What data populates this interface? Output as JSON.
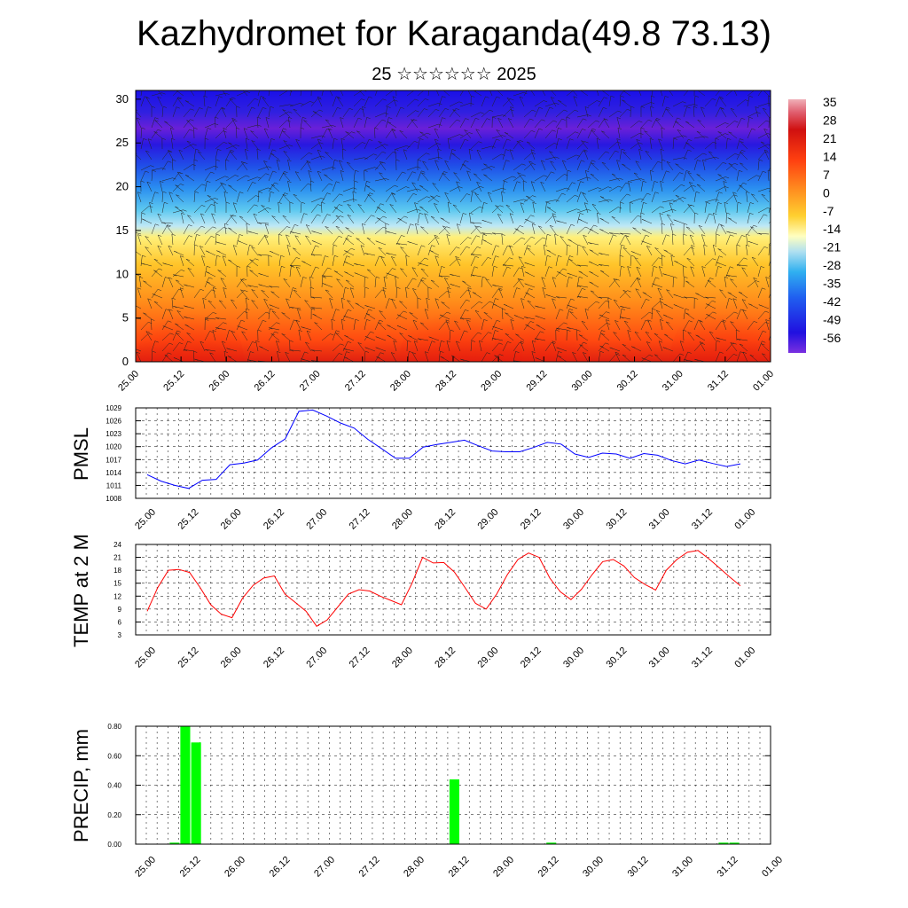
{
  "title": "Kazhydromet for Karaganda(49.8 73.13)",
  "subtitle": "25 ☆☆☆☆☆☆ 2025",
  "colors": {
    "pmsl_line": "#0000ff",
    "temp_line": "#ff0000",
    "precip_bar": "#00ff00",
    "grid": "#000000"
  },
  "chart_data": [
    {
      "type": "heatmap",
      "name": "cross-section",
      "x_tick_labels": [
        "25.00",
        "25.12",
        "26.00",
        "26.12",
        "27.00",
        "27.12",
        "28.00",
        "28.12",
        "29.00",
        "29.12",
        "30.00",
        "30.12",
        "31.00",
        "31.12",
        "01.00"
      ],
      "y_ticks": [
        0,
        5,
        10,
        15,
        20,
        25,
        30
      ],
      "ylim": [
        0,
        31
      ],
      "colorbar_labels": [
        "35",
        "28",
        "21",
        "14",
        "7",
        "0",
        "-7",
        "-14",
        "-21",
        "-28",
        "-35",
        "-42",
        "-49",
        "-56"
      ],
      "colorbar_range": [
        -60,
        38
      ],
      "overlay": "wind barbs"
    },
    {
      "type": "line",
      "ylabel": "PMSL",
      "y_tick_labels": [
        "1029",
        "1026",
        "1023",
        "1020",
        "1017",
        "1014",
        "1011",
        "1008"
      ],
      "ylim": [
        1008,
        1029
      ],
      "x_tick_labels": [
        "25.00",
        "25.12",
        "26.00",
        "26.12",
        "27.00",
        "27.12",
        "28.00",
        "28.12",
        "29.00",
        "29.12",
        "30.00",
        "30.12",
        "31.00",
        "31.12",
        "01.00"
      ],
      "x_step_hours": 3,
      "values": [
        1013.5,
        1012.0,
        1011.0,
        1010.3,
        1012.2,
        1012.4,
        1015.8,
        1016.2,
        1016.9,
        1019.7,
        1021.8,
        1028.2,
        1028.5,
        1027.1,
        1025.5,
        1024.3,
        1021.7,
        1019.5,
        1017.3,
        1017.3,
        1019.9,
        1020.5,
        1021.0,
        1021.5,
        1020.2,
        1019.0,
        1018.8,
        1018.8,
        1019.8,
        1021.0,
        1020.6,
        1018.3,
        1017.5,
        1018.5,
        1018.3,
        1017.3,
        1018.4,
        1018.0,
        1016.8,
        1016.0,
        1016.9,
        1016.1,
        1015.4,
        1016.0
      ]
    },
    {
      "type": "line",
      "ylabel": "TEMP at 2 M",
      "y_tick_labels": [
        "24",
        "21",
        "18",
        "15",
        "12",
        "9",
        "6",
        "3"
      ],
      "ylim": [
        3,
        24
      ],
      "x_tick_labels": [
        "25.00",
        "25.12",
        "26.00",
        "26.12",
        "27.00",
        "27.12",
        "28.00",
        "28.12",
        "29.00",
        "29.12",
        "30.00",
        "30.12",
        "31.00",
        "31.12",
        "01.00"
      ],
      "x_step_hours": 3,
      "values": [
        8.5,
        14.0,
        18.0,
        18.2,
        17.5,
        14.0,
        10.0,
        7.8,
        7.0,
        11.5,
        14.5,
        16.2,
        16.7,
        12.5,
        10.5,
        8.5,
        5.0,
        6.5,
        9.5,
        12.5,
        13.5,
        13.2,
        12.0,
        11.0,
        10.0,
        15.0,
        21.0,
        19.7,
        19.8,
        17.6,
        14.0,
        10.3,
        9.0,
        12.5,
        17.0,
        20.5,
        22.0,
        21.0,
        16.2,
        13.0,
        11.2,
        13.6,
        17.0,
        20.0,
        20.5,
        19.0,
        16.3,
        14.7,
        13.4,
        18.0,
        20.5,
        22.2,
        22.6,
        20.7,
        18.6,
        16.4,
        14.4
      ]
    },
    {
      "type": "bar",
      "ylabel": "PRECIP, mm",
      "y_tick_labels": [
        "0.80",
        "0.60",
        "0.40",
        "0.20",
        "0.00"
      ],
      "ylim": [
        0,
        0.8
      ],
      "x_tick_labels": [
        "25.00",
        "25.12",
        "26.00",
        "26.12",
        "27.00",
        "27.12",
        "28.00",
        "28.12",
        "29.00",
        "29.12",
        "30.00",
        "30.12",
        "31.00",
        "31.12",
        "01.00"
      ],
      "bars": [
        {
          "slot": 2,
          "value": 0.01
        },
        {
          "slot": 3,
          "value": 0.8
        },
        {
          "slot": 4,
          "value": 0.69
        },
        {
          "slot": 28,
          "value": 0.44
        },
        {
          "slot": 37,
          "value": 0.01
        },
        {
          "slot": 53,
          "value": 0.01
        },
        {
          "slot": 54,
          "value": 0.01
        }
      ]
    }
  ]
}
